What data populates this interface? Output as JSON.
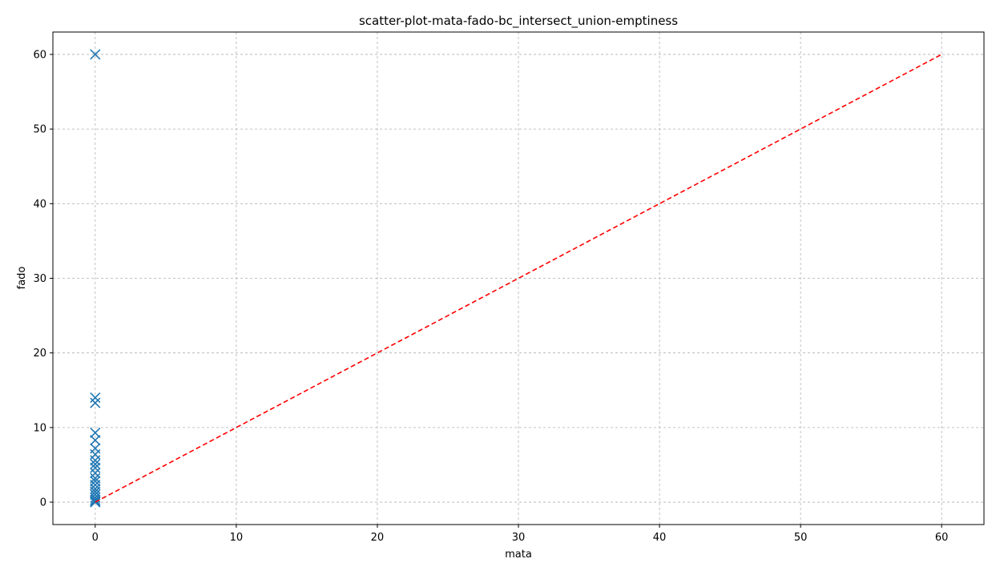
{
  "chart_data": {
    "type": "scatter",
    "title": "scatter-plot-mata-fado-bc_intersect_union-emptiness",
    "xlabel": "mata",
    "ylabel": "fado",
    "xlim": [
      -3,
      63
    ],
    "ylim": [
      -3,
      63
    ],
    "xticks": [
      0,
      10,
      20,
      30,
      40,
      50,
      60
    ],
    "yticks": [
      0,
      10,
      20,
      30,
      40,
      50,
      60
    ],
    "grid": true,
    "marker": "x",
    "colors": {
      "points": "#1f77b4",
      "reference_line": "#ff0000",
      "grid": "#b0b0b0"
    },
    "series": [
      {
        "points": [
          [
            0,
            60
          ],
          [
            0,
            14
          ],
          [
            0,
            13.3
          ],
          [
            0,
            9.3
          ],
          [
            0,
            8.3
          ],
          [
            0,
            7.2
          ],
          [
            0,
            6.4
          ],
          [
            0,
            5.6
          ],
          [
            0,
            5.1
          ],
          [
            0,
            4.6
          ],
          [
            0,
            3.9
          ],
          [
            0,
            3.2
          ],
          [
            0,
            2.8
          ],
          [
            0,
            2.3
          ],
          [
            0,
            1.8
          ],
          [
            0,
            1.4
          ],
          [
            0,
            1.0
          ],
          [
            0,
            0.6
          ],
          [
            0,
            0.3
          ],
          [
            0,
            0.1
          ],
          [
            0,
            0
          ]
        ]
      }
    ],
    "reference_line": {
      "from": [
        0,
        0
      ],
      "to": [
        60,
        60
      ],
      "style": "dashed"
    }
  }
}
